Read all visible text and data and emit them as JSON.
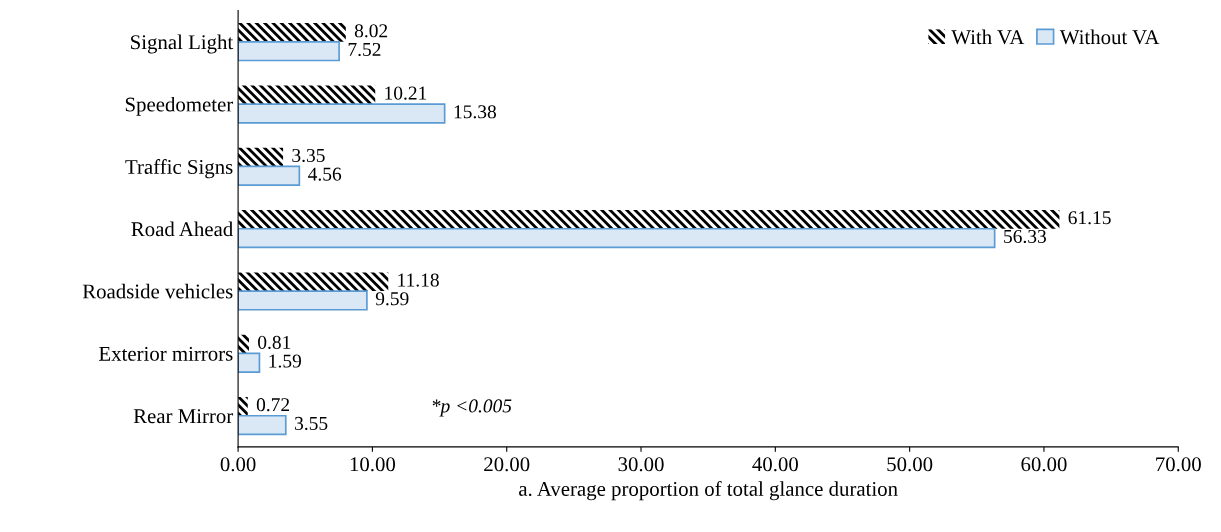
{
  "chart_data": {
    "type": "bar",
    "orientation": "horizontal",
    "xlabel": "a. Average proportion of total glance duration",
    "categories": [
      "Signal Light",
      "Speedometer",
      "Traffic Signs",
      "Road Ahead",
      "Roadside vehicles",
      "Exterior mirrors",
      "Rear Mirror"
    ],
    "series": [
      {
        "name": "With VA",
        "color": "#000000",
        "values": [
          8.02,
          10.21,
          3.35,
          61.15,
          11.18,
          0.81,
          0.72
        ]
      },
      {
        "name": "Without VA",
        "color": "#dae8f5",
        "values": [
          7.52,
          15.38,
          4.56,
          56.33,
          9.59,
          1.59,
          3.55
        ]
      }
    ],
    "xlim": [
      0,
      70
    ],
    "xticks": [
      {
        "value": 0,
        "label": "0.00"
      },
      {
        "value": 10,
        "label": "10.00"
      },
      {
        "value": 20,
        "label": "20.00"
      },
      {
        "value": 30,
        "label": "30.00"
      },
      {
        "value": 40,
        "label": "40.00"
      },
      {
        "value": 50,
        "label": "50.00"
      },
      {
        "value": 60,
        "label": "60.00"
      },
      {
        "value": 70,
        "label": "70.00"
      }
    ],
    "data_labels": true,
    "legend": "top right",
    "grid": false,
    "annotations": [
      "*p <0.005"
    ]
  }
}
